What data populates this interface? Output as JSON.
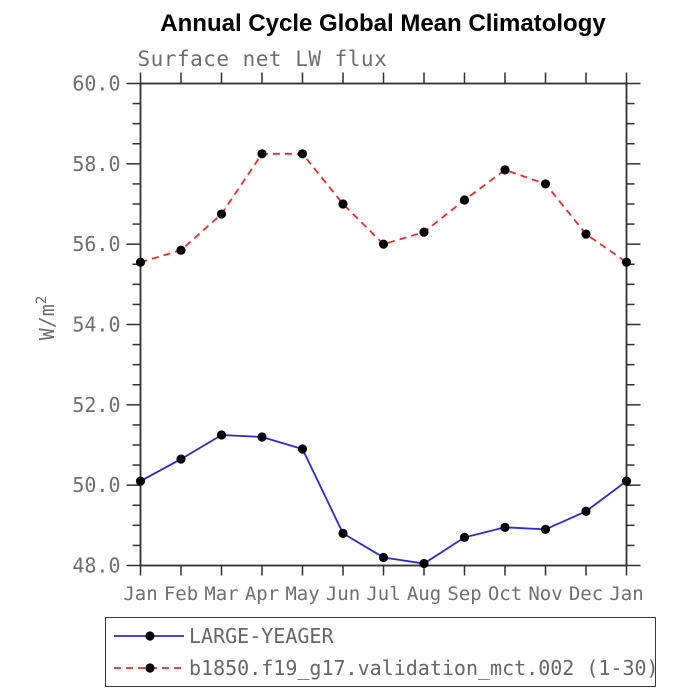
{
  "title": "Annual Cycle Global Mean Climatology",
  "chart_data": {
    "type": "line",
    "title": "Annual Cycle Global Mean Climatology",
    "subtitle": "Surface net LW flux",
    "ylabel": "W/m²",
    "xlabel": "",
    "categories": [
      "Jan",
      "Feb",
      "Mar",
      "Apr",
      "May",
      "Jun",
      "Jul",
      "Aug",
      "Sep",
      "Oct",
      "Nov",
      "Dec",
      "Jan"
    ],
    "ylim": [
      48.0,
      60.0
    ],
    "ytick_major": [
      48.0,
      50.0,
      52.0,
      54.0,
      56.0,
      58.0,
      60.0
    ],
    "ytick_labels": [
      "48.0",
      "50.0",
      "52.0",
      "54.0",
      "56.0",
      "58.0",
      "60.0"
    ],
    "ytick_minor_step": 0.5,
    "grid": "off",
    "legend_position": "bottom",
    "series": [
      {
        "name": "LARGE-YEAGER",
        "line_style": "solid",
        "color": "#2828d8",
        "marker": "filled-circle",
        "marker_color": "#000000",
        "values": [
          50.1,
          50.65,
          51.25,
          51.2,
          50.9,
          48.8,
          48.2,
          48.05,
          48.7,
          48.95,
          48.9,
          49.35,
          50.1
        ]
      },
      {
        "name": "b1850.f19_g17.validation_mct.002 (1-30)",
        "line_style": "dashed",
        "color": "#f02828",
        "marker": "filled-circle",
        "marker_color": "#000000",
        "values": [
          55.55,
          55.85,
          56.75,
          58.25,
          58.25,
          57.0,
          56.0,
          56.3,
          57.1,
          57.85,
          57.5,
          56.25,
          55.55
        ]
      }
    ]
  },
  "colors": {
    "axis": "#303030",
    "label_text": "#6e6e6e",
    "legend_text": "#666666",
    "background": "#ffffff"
  }
}
